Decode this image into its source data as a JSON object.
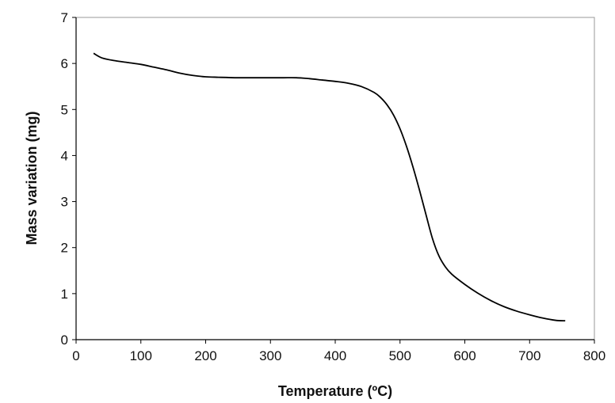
{
  "chart_data": {
    "type": "line",
    "title": "",
    "xlabel": "Temperature (ºC)",
    "ylabel": "Mass variation (mg)",
    "xlim": [
      0,
      800
    ],
    "ylim": [
      0,
      7
    ],
    "xticks": [
      "0",
      "100",
      "200",
      "300",
      "400",
      "500",
      "600",
      "700",
      "800"
    ],
    "yticks": [
      "0",
      "1",
      "2",
      "3",
      "4",
      "5",
      "6",
      "7"
    ],
    "grid": false,
    "series": [
      {
        "color": "#000000",
        "x": [
          27,
          40,
          60,
          80,
          100,
          120,
          140,
          160,
          180,
          200,
          220,
          250,
          280,
          300,
          320,
          340,
          360,
          380,
          400,
          420,
          440,
          460,
          470,
          480,
          490,
          500,
          510,
          520,
          530,
          540,
          550,
          560,
          570,
          580,
          600,
          620,
          640,
          660,
          680,
          700,
          720,
          740,
          755
        ],
        "y": [
          6.22,
          6.12,
          6.06,
          6.02,
          5.98,
          5.92,
          5.86,
          5.79,
          5.74,
          5.71,
          5.7,
          5.69,
          5.69,
          5.69,
          5.69,
          5.69,
          5.67,
          5.64,
          5.61,
          5.57,
          5.5,
          5.37,
          5.26,
          5.1,
          4.88,
          4.58,
          4.2,
          3.75,
          3.25,
          2.72,
          2.2,
          1.82,
          1.58,
          1.42,
          1.2,
          1.01,
          0.85,
          0.72,
          0.62,
          0.54,
          0.47,
          0.42,
          0.41
        ]
      }
    ]
  }
}
